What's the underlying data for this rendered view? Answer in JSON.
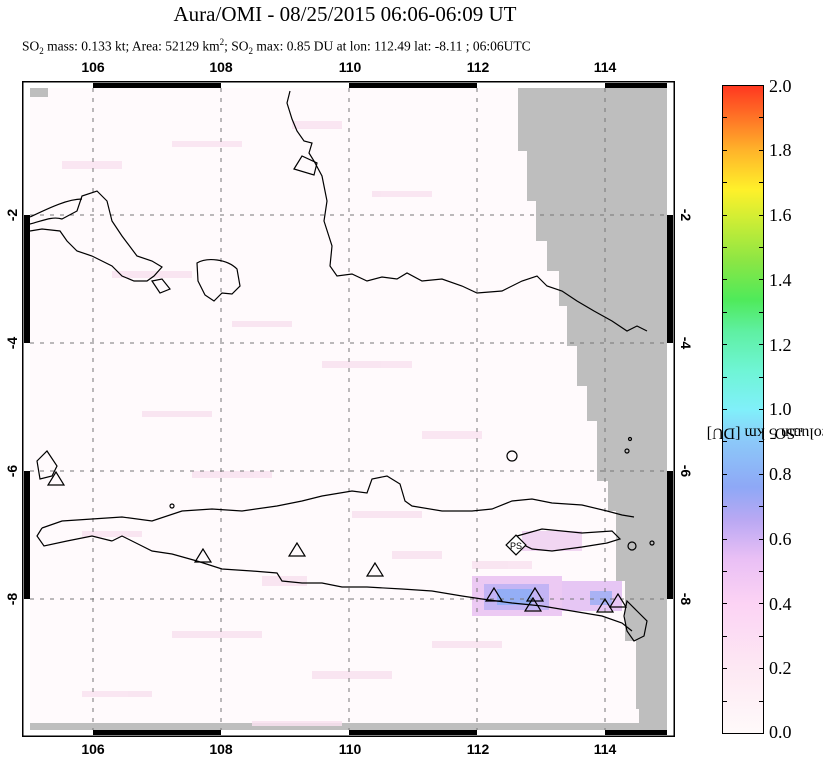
{
  "header": {
    "title": "Aura/OMI - 08/25/2015 06:06-06:09 UT",
    "subtitle": {
      "so2_mass_label": "SO",
      "so2_mass_sub": "2",
      "so2_mass_text": " mass: 0.133 kt; Area: 52129 km",
      "area_sup": "2",
      "so2_max_prefix": "; SO",
      "so2_max_sub": "2",
      "so2_max_text": " max: 0.85 DU at lon: 112.49 lat: -8.11 ; 06:06UTC"
    }
  },
  "map": {
    "lon_ticks": [
      "106",
      "108",
      "110",
      "112",
      "114"
    ],
    "lat_ticks_left": [
      "-2",
      "-4",
      "-6",
      "-8"
    ],
    "lat_ticks_right": [
      "-2",
      "-4",
      "-6",
      "-8"
    ],
    "lon_range": [
      105,
      115
    ],
    "lat_range": [
      -10,
      0
    ],
    "no_data_color": "#bebebe",
    "grid": "dashed",
    "markers": {
      "volcano_symbol": "triangle-icon",
      "volcanoes": [
        {
          "lon": 105.4,
          "lat": -6.1
        },
        {
          "lon": 107.7,
          "lat": -7.3
        },
        {
          "lon": 109.2,
          "lat": -7.2
        },
        {
          "lon": 110.45,
          "lat": -7.55
        },
        {
          "lon": 112.3,
          "lat": -7.95
        },
        {
          "lon": 112.9,
          "lat": -7.95
        },
        {
          "lon": 112.92,
          "lat": -8.1
        },
        {
          "lon": 114.05,
          "lat": -8.1
        },
        {
          "lon": 114.25,
          "lat": -8.05
        }
      ],
      "power_station": {
        "label": "PS",
        "lon": 112.6,
        "lat": -7.1
      }
    }
  },
  "colorbar": {
    "title_prefix": "SO",
    "title_sub": "2",
    "title_rest": " PCA column 5 km [DU]",
    "ticks": [
      "2.0",
      "1.8",
      "1.6",
      "1.4",
      "1.2",
      "1.0",
      "0.8",
      "0.6",
      "0.4",
      "0.2",
      "0.0"
    ],
    "min": 0.0,
    "max": 2.0
  }
}
